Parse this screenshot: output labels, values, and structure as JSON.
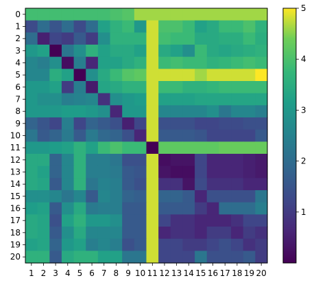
{
  "chart_data": {
    "type": "heatmap",
    "title": "",
    "xlabel": "",
    "ylabel": "",
    "x_ticks": [
      "1",
      "2",
      "3",
      "4",
      "5",
      "6",
      "7",
      "8",
      "9",
      "10",
      "11",
      "12",
      "13",
      "14",
      "15",
      "16",
      "17",
      "18",
      "19",
      "20"
    ],
    "y_ticks": [
      "0",
      "1",
      "2",
      "3",
      "4",
      "5",
      "6",
      "7",
      "8",
      "9",
      "10",
      "11",
      "12",
      "13",
      "14",
      "15",
      "16",
      "17",
      "18",
      "19",
      "20"
    ],
    "colorbar": {
      "min": 0,
      "max": 5,
      "ticks": [
        1,
        2,
        3,
        4,
        5
      ],
      "colormap": "viridis"
    },
    "grid": false,
    "values": [
      [
        3.9,
        3.9,
        3.9,
        3.9,
        3.9,
        3.9,
        3.9,
        4.0,
        4.1,
        4.6,
        4.6,
        4.6,
        4.6,
        4.6,
        4.6,
        4.6,
        4.6,
        4.6,
        4.6,
        4.6
      ],
      [
        1.3,
        2.0,
        1.5,
        2.0,
        1.3,
        2.0,
        3.2,
        3.6,
        3.8,
        3.0,
        4.8,
        4.0,
        4.0,
        3.8,
        3.2,
        3.4,
        3.8,
        3.8,
        4.0,
        3.6
      ],
      [
        2.0,
        0.5,
        1.2,
        1.0,
        1.6,
        1.0,
        2.8,
        3.6,
        3.6,
        3.6,
        4.8,
        3.9,
        3.8,
        3.8,
        3.4,
        3.4,
        3.5,
        3.5,
        3.8,
        3.5
      ],
      [
        3.0,
        3.2,
        0.0,
        2.2,
        2.8,
        3.6,
        3.2,
        3.4,
        3.4,
        3.2,
        4.8,
        3.4,
        3.2,
        2.8,
        3.8,
        3.4,
        3.3,
        3.4,
        3.5,
        3.6
      ],
      [
        2.6,
        2.4,
        2.8,
        0.2,
        2.4,
        0.6,
        3.2,
        3.2,
        3.4,
        3.6,
        4.8,
        3.8,
        3.9,
        3.8,
        3.8,
        3.6,
        3.7,
        3.8,
        3.9,
        3.8
      ],
      [
        2.6,
        2.6,
        3.5,
        3.2,
        0.0,
        2.8,
        3.4,
        3.8,
        4.1,
        4.2,
        4.8,
        4.8,
        4.8,
        4.8,
        4.6,
        4.8,
        4.8,
        4.8,
        4.8,
        5.0
      ],
      [
        3.0,
        3.0,
        3.2,
        1.0,
        2.4,
        0.4,
        3.3,
        3.4,
        3.6,
        3.6,
        4.8,
        3.8,
        3.8,
        3.6,
        3.6,
        3.7,
        3.8,
        3.8,
        3.8,
        3.8
      ],
      [
        3.0,
        2.8,
        2.8,
        2.4,
        2.5,
        2.6,
        0.8,
        2.8,
        3.0,
        3.1,
        4.8,
        3.2,
        3.2,
        3.2,
        3.3,
        3.3,
        3.3,
        3.3,
        3.3,
        3.3
      ],
      [
        3.0,
        3.0,
        3.0,
        3.1,
        3.1,
        3.0,
        2.8,
        0.6,
        3.0,
        3.0,
        4.8,
        2.6,
        2.6,
        2.6,
        2.6,
        2.8,
        2.2,
        2.6,
        2.6,
        2.4
      ],
      [
        1.8,
        1.5,
        1.2,
        2.4,
        1.2,
        1.8,
        1.6,
        1.4,
        0.5,
        1.2,
        4.8,
        1.4,
        1.4,
        1.4,
        1.2,
        1.2,
        1.3,
        1.3,
        1.4,
        1.4
      ],
      [
        2.2,
        1.6,
        1.8,
        2.3,
        1.6,
        2.3,
        1.9,
        1.8,
        1.4,
        0.6,
        4.8,
        1.6,
        1.6,
        1.6,
        1.5,
        1.2,
        1.2,
        1.2,
        1.2,
        1.6
      ],
      [
        3.0,
        3.0,
        3.1,
        3.2,
        3.6,
        3.2,
        3.8,
        4.0,
        3.8,
        3.8,
        0.0,
        4.2,
        4.2,
        4.2,
        4.2,
        4.2,
        4.3,
        4.3,
        4.3,
        4.3
      ],
      [
        3.4,
        3.4,
        1.8,
        2.6,
        3.6,
        2.4,
        2.4,
        2.2,
        1.4,
        1.4,
        4.8,
        0.2,
        0.3,
        0.3,
        1.2,
        0.6,
        0.6,
        0.6,
        0.5,
        0.4
      ],
      [
        3.4,
        3.2,
        1.8,
        2.6,
        3.6,
        2.4,
        2.4,
        2.3,
        1.6,
        1.5,
        4.8,
        0.3,
        0.2,
        0.2,
        1.2,
        0.6,
        0.6,
        0.6,
        0.5,
        0.4
      ],
      [
        3.4,
        3.3,
        1.6,
        2.6,
        3.6,
        2.2,
        2.5,
        2.4,
        1.6,
        1.4,
        4.8,
        0.8,
        0.8,
        0.3,
        1.3,
        0.8,
        0.8,
        0.8,
        0.6,
        0.6
      ],
      [
        2.8,
        2.8,
        2.6,
        2.2,
        2.6,
        1.6,
        2.6,
        2.4,
        1.8,
        1.7,
        4.8,
        1.8,
        1.8,
        1.6,
        0.6,
        1.4,
        1.4,
        1.4,
        1.4,
        2.2
      ],
      [
        3.1,
        3.2,
        1.6,
        2.8,
        3.4,
        2.3,
        2.4,
        2.4,
        1.6,
        1.6,
        4.8,
        1.6,
        1.6,
        1.6,
        1.0,
        0.6,
        2.0,
        2.0,
        2.0,
        2.4
      ],
      [
        3.4,
        3.3,
        1.4,
        3.2,
        3.6,
        3.0,
        3.0,
        2.8,
        1.6,
        1.6,
        4.8,
        1.2,
        0.8,
        0.8,
        0.6,
        0.6,
        0.6,
        0.8,
        1.2,
        1.2
      ],
      [
        3.4,
        3.3,
        1.6,
        2.8,
        3.4,
        2.6,
        2.6,
        2.6,
        1.6,
        1.6,
        4.8,
        0.6,
        0.8,
        0.8,
        0.6,
        1.0,
        1.0,
        0.6,
        1.0,
        0.8
      ],
      [
        3.2,
        3.3,
        1.8,
        3.0,
        3.2,
        2.4,
        2.6,
        2.4,
        1.4,
        1.6,
        4.8,
        1.2,
        1.2,
        1.0,
        1.0,
        1.2,
        1.4,
        1.2,
        0.8,
        1.0
      ],
      [
        3.6,
        3.6,
        1.6,
        3.4,
        3.6,
        3.6,
        3.2,
        3.2,
        2.2,
        2.2,
        4.8,
        1.2,
        1.2,
        1.2,
        2.2,
        1.4,
        1.4,
        1.4,
        1.6,
        1.0
      ]
    ]
  }
}
